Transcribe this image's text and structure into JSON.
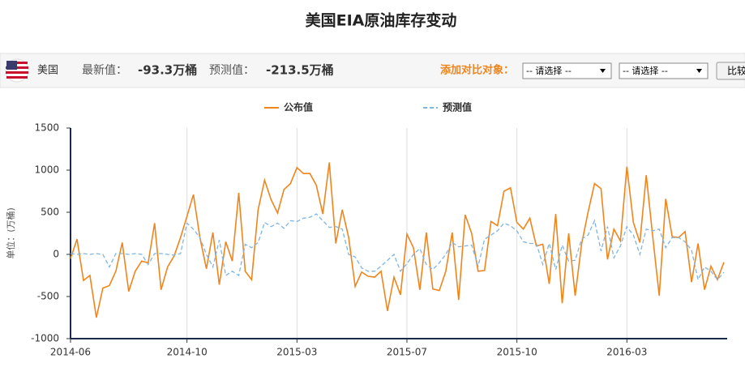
{
  "header": {
    "title": "美国EIA原油库存变动",
    "region": "美国",
    "latest_label": "最新值：",
    "latest_value": "-93.3万桶",
    "forecast_label": "预测值：",
    "forecast_value": "-213.5万桶",
    "compare_label": "添加对比对象：",
    "select_1": "-- 请选择 --",
    "select_2": "-- 请选择 --",
    "button": "比较"
  },
  "chart_data": {
    "type": "line",
    "y_label": "单位：(万桶)",
    "categories": [
      "2014-06",
      null,
      null,
      null,
      null,
      null,
      null,
      null,
      null,
      null,
      null,
      null,
      null,
      null,
      null,
      null,
      null,
      null,
      "2014-10",
      null,
      null,
      null,
      null,
      null,
      null,
      null,
      null,
      null,
      null,
      null,
      null,
      null,
      null,
      null,
      null,
      "2015-03",
      null,
      null,
      null,
      null,
      null,
      null,
      null,
      null,
      null,
      null,
      null,
      null,
      null,
      null,
      null,
      null,
      "2015-07",
      null,
      null,
      null,
      null,
      null,
      null,
      null,
      null,
      null,
      null,
      null,
      null,
      null,
      null,
      null,
      null,
      "2015-10",
      null,
      null,
      null,
      null,
      null,
      null,
      null,
      null,
      null,
      null,
      null,
      null,
      null,
      null,
      null,
      null,
      "2016-03",
      null,
      null,
      null,
      null,
      null,
      null,
      null,
      null,
      null,
      null,
      null,
      null,
      null,
      null,
      null
    ],
    "series": [
      {
        "name": "公布值",
        "color": "#f0851c",
        "dashed": false,
        "values": [
          -50,
          180,
          -310,
          -250,
          -750,
          -400,
          -370,
          -200,
          140,
          -440,
          -200,
          -80,
          -100,
          370,
          -420,
          -150,
          -20,
          200,
          450,
          710,
          200,
          -170,
          260,
          -360,
          150,
          -80,
          730,
          -200,
          -300,
          530,
          880,
          650,
          490,
          770,
          840,
          1030,
          960,
          960,
          820,
          480,
          1090,
          130,
          530,
          200,
          -380,
          -210,
          -260,
          -270,
          -200,
          -670,
          -270,
          -480,
          240,
          80,
          -420,
          260,
          -410,
          -430,
          -200,
          260,
          -540,
          470,
          250,
          -200,
          -190,
          390,
          340,
          750,
          790,
          380,
          300,
          430,
          100,
          120,
          -350,
          480,
          -580,
          250,
          -490,
          120,
          500,
          840,
          780,
          -60,
          300,
          160,
          1040,
          380,
          140,
          940,
          210,
          -490,
          660,
          210,
          200,
          270,
          -330,
          130,
          -420,
          -140,
          -300,
          -93.3
        ]
      },
      {
        "name": "预测值",
        "color": "#7fb6e2",
        "dashed": true,
        "values": [
          10,
          0,
          10,
          0,
          10,
          0,
          -150,
          10,
          10,
          0,
          10,
          0,
          -120,
          10,
          10,
          0,
          -10,
          10,
          370,
          300,
          200,
          0,
          -150,
          170,
          -250,
          -200,
          -250,
          120,
          80,
          140,
          380,
          330,
          370,
          310,
          400,
          390,
          430,
          440,
          480,
          400,
          320,
          330,
          300,
          0,
          -30,
          -160,
          -200,
          -200,
          -140,
          -70,
          0,
          -200,
          -110,
          0,
          70,
          -120,
          -180,
          -100,
          0,
          140,
          90,
          100,
          110,
          -140,
          180,
          230,
          280,
          370,
          340,
          280,
          150,
          130,
          130,
          -120,
          130,
          -180,
          110,
          -80,
          -70,
          180,
          230,
          400,
          40,
          330,
          -40,
          100,
          330,
          230,
          0,
          300,
          280,
          300,
          80,
          200,
          200,
          150,
          50,
          -300,
          -150,
          -200,
          -300,
          -213.5
        ]
      }
    ],
    "ylim": [
      -1000,
      1500
    ],
    "yticks": [
      -1000,
      -500,
      0,
      500,
      1000,
      1500
    ],
    "grid": "x"
  }
}
